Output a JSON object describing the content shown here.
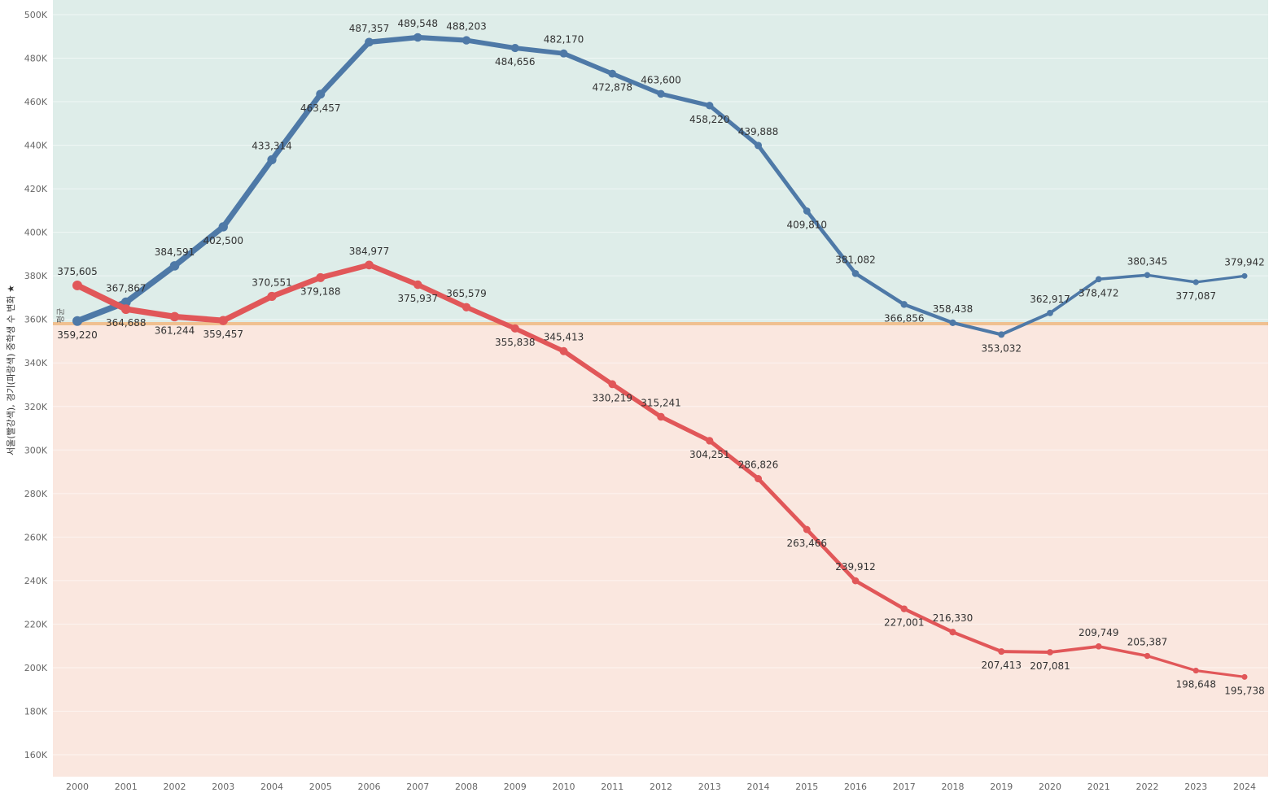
{
  "chart_data": {
    "type": "line",
    "ylabel": "서울(빨강색), 경기(파랑색) 중학생 수 변화 ★",
    "reference_line": {
      "label": "평균",
      "value": 358000,
      "color": "#f0c090"
    },
    "ylim": [
      150000,
      505000
    ],
    "yticks": [
      160000,
      180000,
      200000,
      220000,
      240000,
      260000,
      280000,
      300000,
      320000,
      340000,
      360000,
      380000,
      400000,
      420000,
      440000,
      460000,
      480000,
      500000
    ],
    "ytick_labels": [
      "160K",
      "180K",
      "200K",
      "220K",
      "240K",
      "260K",
      "280K",
      "300K",
      "320K",
      "340K",
      "360K",
      "380K",
      "400K",
      "420K",
      "440K",
      "460K",
      "480K",
      "500K"
    ],
    "categories": [
      "2000",
      "2001",
      "2002",
      "2003",
      "2004",
      "2005",
      "2006",
      "2007",
      "2008",
      "2009",
      "2010",
      "2011",
      "2012",
      "2013",
      "2014",
      "2015",
      "2016",
      "2017",
      "2018",
      "2019",
      "2020",
      "2021",
      "2022",
      "2023",
      "2024"
    ],
    "bands": {
      "above_color": "#deede9",
      "below_color": "#fae7df"
    },
    "series": [
      {
        "name": "경기",
        "color": "#4e79a7",
        "values": [
          359220,
          367867,
          384591,
          402500,
          433314,
          463457,
          487357,
          489548,
          488203,
          484656,
          482170,
          472878,
          463600,
          458220,
          439888,
          409810,
          381082,
          366856,
          358438,
          353032,
          362917,
          378472,
          380345,
          377087,
          379942
        ],
        "labels": [
          "359,220",
          "367,867",
          "384,591",
          "402,500",
          "433,314",
          "463,457",
          "487,357",
          "489,548",
          "488,203",
          "484,656",
          "482,170",
          "472,878",
          "463,600",
          "458,220",
          "439,888",
          "409,810",
          "381,082",
          "366,856",
          "358,438",
          "353,032",
          "362,917",
          "378,472",
          "380,345",
          "377,087",
          "379,942"
        ]
      },
      {
        "name": "서울",
        "color": "#e15759",
        "values": [
          375605,
          364688,
          361244,
          359457,
          370551,
          379188,
          384977,
          375937,
          365579,
          355838,
          345413,
          330219,
          315241,
          304251,
          286826,
          263466,
          239912,
          227001,
          216330,
          207413,
          207081,
          209749,
          205387,
          198648,
          195738
        ],
        "labels": [
          "375,605",
          "364,688",
          "361,244",
          "359,457",
          "370,551",
          "379,188",
          "384,977",
          "375,937",
          "365,579",
          "355,838",
          "345,413",
          "330,219",
          "315,241",
          "304,251",
          "286,826",
          "263,466",
          "239,912",
          "227,001",
          "216,330",
          "207,413",
          "207,081",
          "209,749",
          "205,387",
          "198,648",
          "195,738"
        ]
      }
    ]
  }
}
